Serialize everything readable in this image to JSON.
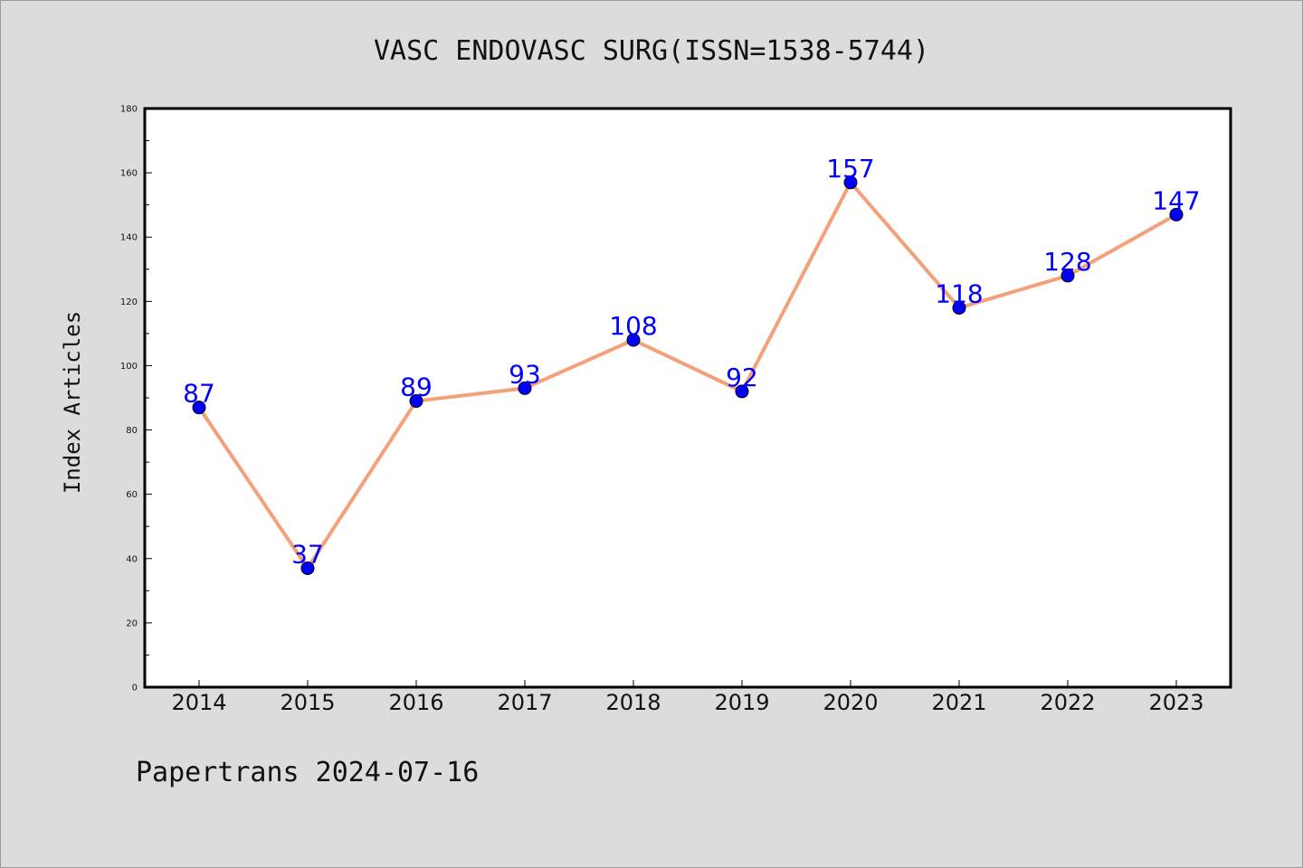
{
  "chart_data": {
    "type": "line",
    "title": "VASC ENDOVASC SURG(ISSN=1538-5744)",
    "ylabel": "Index Articles",
    "xlabel": "",
    "categories": [
      "2014",
      "2015",
      "2016",
      "2017",
      "2018",
      "2019",
      "2020",
      "2021",
      "2022",
      "2023"
    ],
    "series": [
      {
        "values": [
          87,
          37,
          89,
          93,
          108,
          92,
          157,
          118,
          128,
          147
        ]
      }
    ],
    "ylim": [
      0,
      180
    ],
    "yticks": [
      0,
      20,
      40,
      60,
      80,
      100,
      120,
      140,
      160,
      180
    ],
    "grid": false,
    "line_color": "#f4a07a",
    "marker_color": "#0000ff",
    "label_color": "#0000ff"
  },
  "footer": "Papertrans 2024-07-16"
}
